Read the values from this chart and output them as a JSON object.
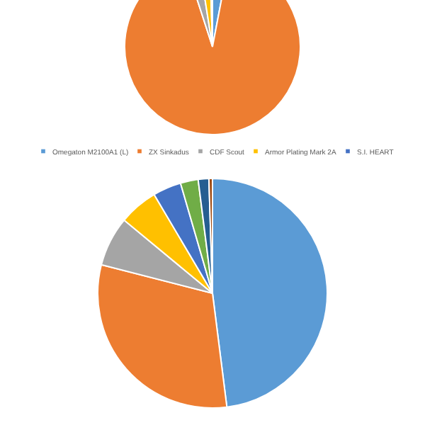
{
  "chart_data": [
    {
      "type": "pie",
      "categories": [
        "Omegaton M2100A1 (L)",
        "ZX Sinkadus",
        "CDF Scout",
        "Armor Plating Mark 2A",
        "S.I. HEART"
      ],
      "values": [
        3,
        92,
        2.5,
        2,
        0.5
      ],
      "colors": [
        "#5b9bd5",
        "#ed7d31",
        "#a5a5a5",
        "#ffc000",
        "#4472c4"
      ],
      "legend": "bottom"
    },
    {
      "type": "pie",
      "categories": [
        null,
        null,
        null,
        null,
        null,
        null,
        null,
        null
      ],
      "values": [
        48,
        31,
        7,
        5.5,
        4,
        2.5,
        1.5,
        0.5
      ],
      "colors": [
        "#5b9bd5",
        "#ed7d31",
        "#a5a5a5",
        "#ffc000",
        "#4472c4",
        "#70ad47",
        "#255e91",
        "#9e480e"
      ]
    }
  ]
}
